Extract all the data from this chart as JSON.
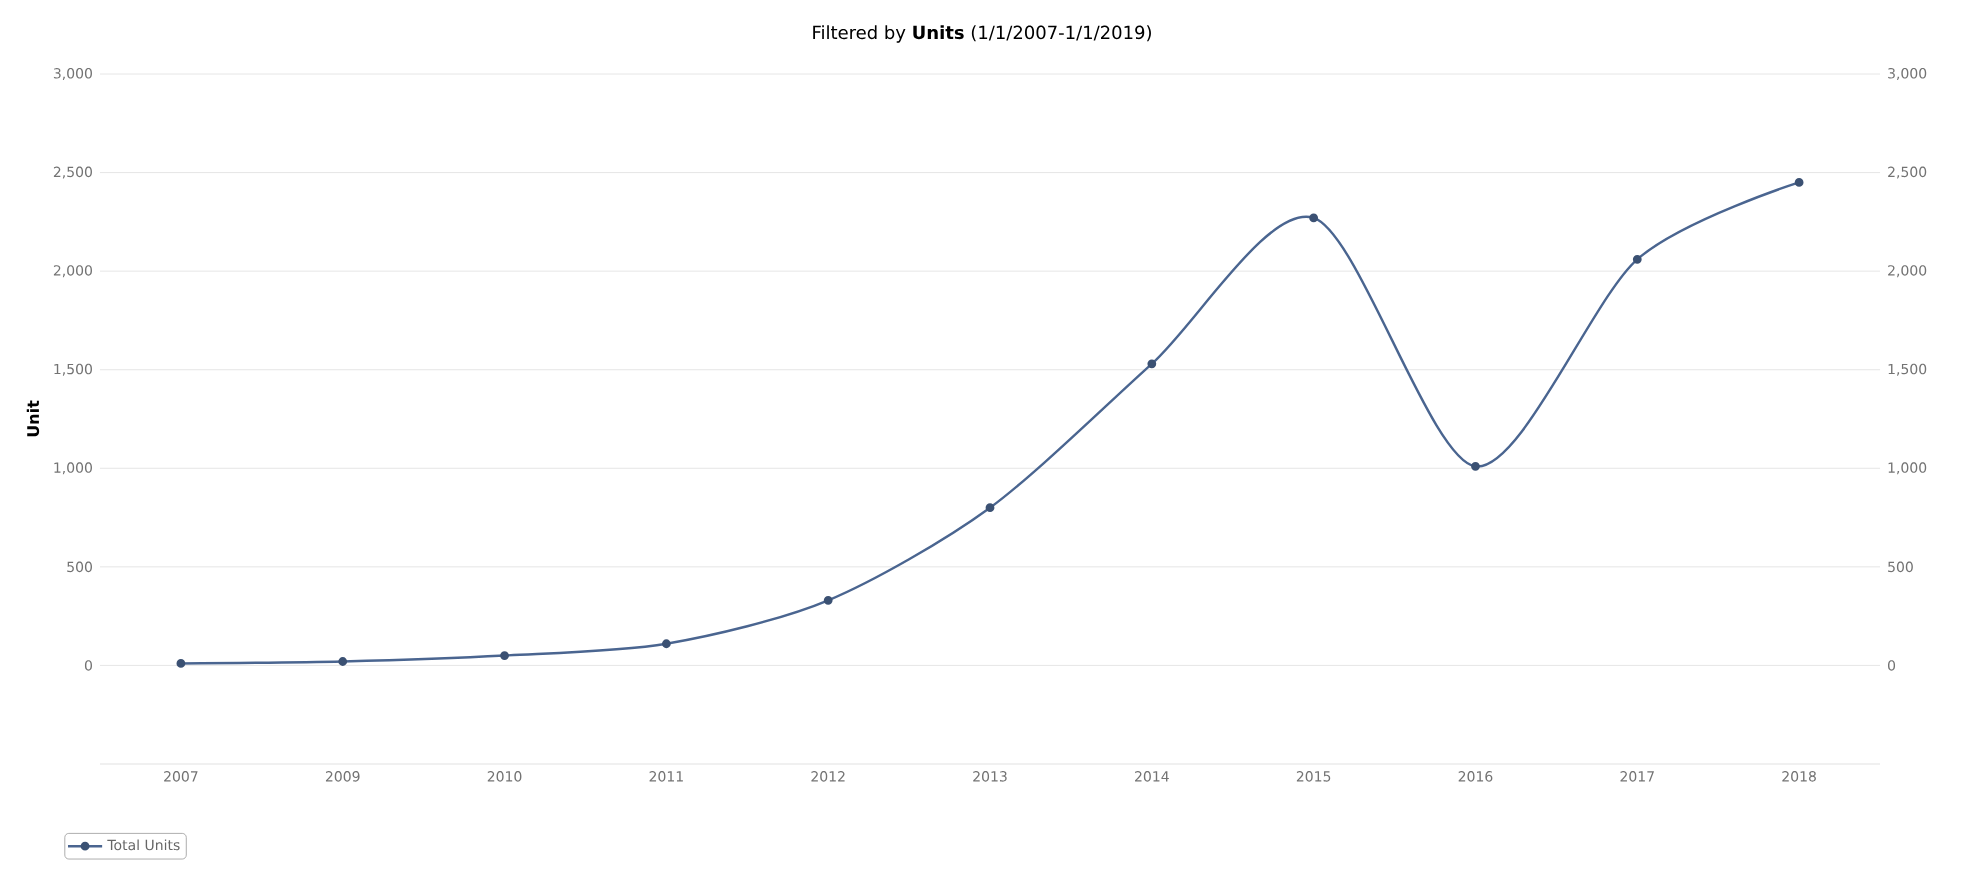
{
  "chart_data": {
    "type": "line",
    "title": "Filtered by **Units** (1/1/2007-1/1/2019)",
    "ylabel": "Unit",
    "categories": [
      "2007",
      "2009",
      "2010",
      "2011",
      "2012",
      "2013",
      "2014",
      "2015",
      "2016",
      "2017",
      "2018"
    ],
    "series": [
      {
        "name": "Total Units",
        "color": "#4a6590",
        "values": [
          10,
          20,
          50,
          110,
          330,
          800,
          1530,
          2270,
          1010,
          2060,
          2450
        ]
      }
    ],
    "ylim": [
      -500,
      3000
    ],
    "yticks": [
      0,
      500,
      {
        "value": 1000,
        "label": "1,000"
      },
      {
        "value": 1500,
        "label": "1,500"
      },
      {
        "value": 2000,
        "label": "2,000"
      },
      {
        "value": 2500,
        "label": "2,500"
      },
      {
        "value": 3000,
        "label": "3,000"
      }
    ],
    "y2lim": [
      -500,
      3000
    ],
    "y2ticks": [
      0,
      500,
      {
        "value": 1000,
        "label": "1,000"
      },
      {
        "value": 1500,
        "label": "1,500"
      },
      {
        "value": 2000,
        "label": "2,000"
      },
      {
        "value": 2500,
        "label": "2,500"
      },
      {
        "value": 3000,
        "label": "3,000"
      }
    ],
    "grid": "y",
    "legend": "bottom left",
    "marker": "circle",
    "line_style": "solid"
  }
}
